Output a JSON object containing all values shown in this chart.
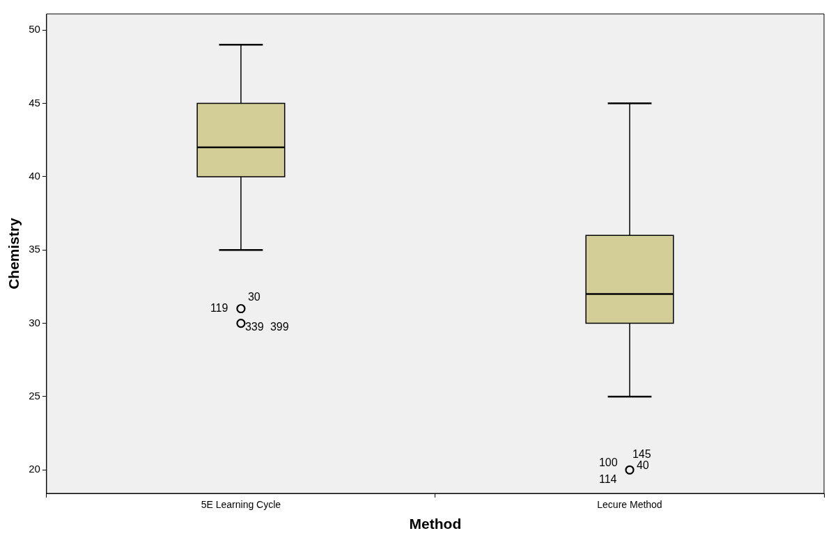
{
  "chart_data": {
    "type": "box",
    "xlabel": "Method",
    "ylabel": "Chemistry",
    "categories": [
      "5E Learning Cycle",
      "Lecure Method"
    ],
    "color": "#d3ce98",
    "boxes": [
      {
        "low": 35,
        "q1": 40,
        "median": 42,
        "q3": 45,
        "high": 49,
        "outliers": [
          31,
          30
        ]
      },
      {
        "low": 25,
        "q1": 30,
        "median": 32,
        "q3": 36,
        "high": 45,
        "outliers": [
          20
        ]
      }
    ],
    "ylim": [
      18.4,
      51.1
    ],
    "yticks": [
      20,
      25,
      30,
      35,
      40,
      45,
      50
    ],
    "grid": false,
    "legend": false,
    "annotations": [
      "119",
      "30",
      "339",
      "399",
      "100",
      "145",
      "40",
      "114"
    ]
  }
}
